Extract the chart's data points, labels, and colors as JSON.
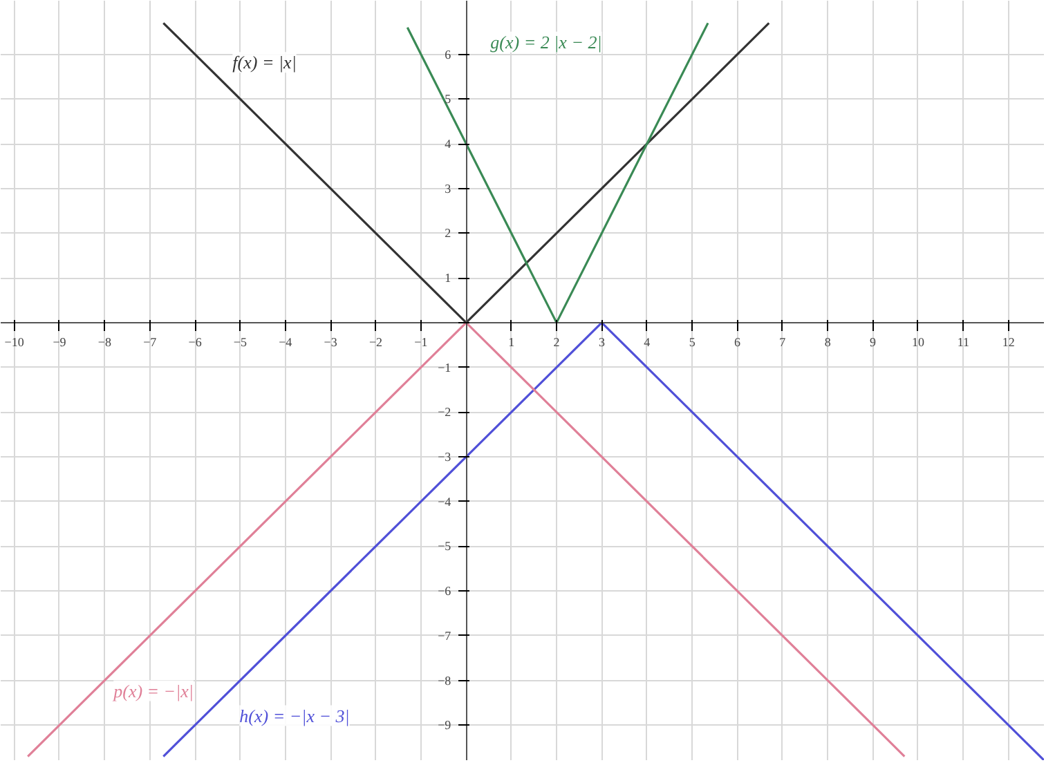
{
  "chart_data": {
    "type": "line",
    "xlim": [
      -10.3,
      12.8
    ],
    "ylim": [
      -9.8,
      7.2
    ],
    "xticks": [
      -10,
      -9,
      -8,
      -7,
      -6,
      -5,
      -4,
      -3,
      -2,
      -1,
      {
        "value": 0,
        "label": null
      },
      1,
      2,
      3,
      4,
      5,
      6,
      7,
      8,
      9,
      10,
      11,
      12
    ],
    "yticks": [
      -9,
      -8,
      -7,
      -6,
      -5,
      -4,
      -3,
      -2,
      -1,
      {
        "value": 0,
        "label": null
      },
      1,
      2,
      3,
      4,
      5,
      6
    ],
    "grid": true,
    "marker": "none",
    "line_style": "solid",
    "series": [
      {
        "name": "f(x) = |x|",
        "color": "#333333",
        "x": [
          -6.7,
          0,
          6.7
        ],
        "values": [
          6.7,
          0,
          6.7
        ]
      },
      {
        "name": "g(x) = 2 |x − 2|",
        "color": "#3a8a55",
        "x": [
          -1.3,
          2,
          5.35
        ],
        "values": [
          6.6,
          0,
          6.7
        ]
      },
      {
        "name": "h(x) = −|x − 3|",
        "color": "#5050d8",
        "x": [
          -6.7,
          3,
          12.8
        ],
        "values": [
          -9.7,
          0,
          -9.8
        ]
      },
      {
        "name": "p(x) = −|x|",
        "color": "#e08098",
        "x": [
          -9.7,
          0,
          9.7
        ],
        "values": [
          -9.7,
          0,
          -9.7
        ]
      }
    ]
  }
}
